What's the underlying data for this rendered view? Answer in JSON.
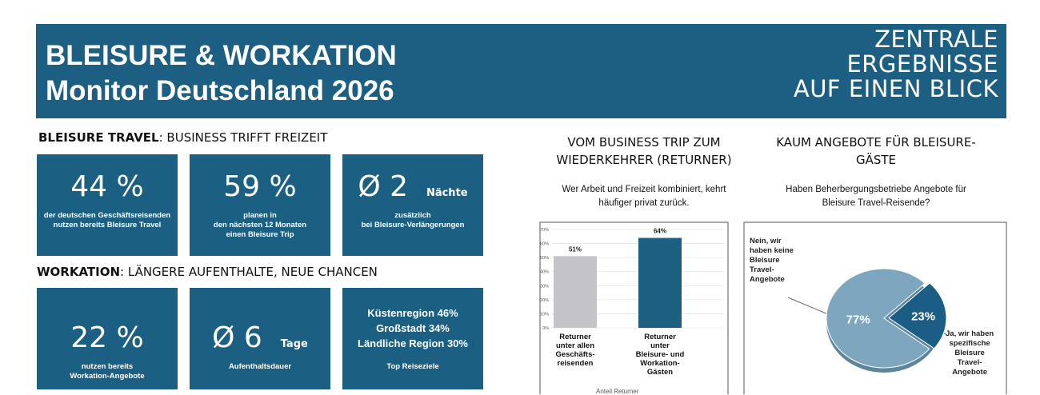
{
  "header": {
    "title_lines": [
      "BLEISURE & WORKATION",
      "Monitor Deutschland 2026"
    ],
    "tagline_lines": [
      "ZENTRALE",
      "ERGEBNISSE",
      "AUF EINEN BLICK"
    ]
  },
  "bleisure": {
    "heading_bold": "BLEISURE TRAVEL",
    "heading_rest": ": BUSINESS TRIFFT FREIZEIT",
    "cards": [
      {
        "big": "44 %",
        "text": [
          "der deutschen Geschäftsreisenden",
          "nutzen bereits Bleisure Travel"
        ]
      },
      {
        "big": "59 %",
        "text": [
          "planen in",
          "den nächsten 12 Monaten",
          "einen Bleisure Trip"
        ]
      },
      {
        "big": "Ø 2",
        "unit": "Nächte",
        "text": [
          "zusätzlich",
          "bei Bleisure-Verlängerungen"
        ]
      }
    ]
  },
  "workation": {
    "heading_bold": "WORKATION",
    "heading_rest": ": LÄNGERE AUFENTHALTE, NEUE CHANCEN",
    "cards": [
      {
        "big": "22 %",
        "text": [
          "nutzen bereits",
          "Workation-Angebote"
        ]
      },
      {
        "big": "Ø 6",
        "unit": "Tage",
        "text": [
          "Aufenthaltsdauer"
        ]
      },
      {
        "lines": [
          "Küstenregion 46%",
          "Großstadt 34%",
          "Ländliche Region 30%"
        ],
        "text": [
          "Top Reiseziele"
        ]
      }
    ]
  },
  "chart_data": [
    {
      "type": "bar",
      "title": "VOM BUSINESS TRIP ZUM\nWIEDERKEHRER (RETURNER)",
      "subtitle": "Wer Arbeit und Freizeit kombiniert, kehrt\nhäufiger privat zurück.",
      "categories": [
        "Returner\nunter allen\nGeschäfts-\nreisenden",
        "Returner\nunter\nBleisure- und\nWorkation-\nGästen"
      ],
      "values": [
        51,
        64
      ],
      "value_labels": [
        "51%",
        "64%"
      ],
      "colors": [
        "#c4c4c8",
        "#1d5f80"
      ],
      "x_label": "Anteil Returner",
      "ylim": [
        0,
        70
      ],
      "grid": true,
      "yticks": [
        {
          "value": 0,
          "label": "0%"
        },
        {
          "value": 10,
          "label": "10%"
        },
        {
          "value": 20,
          "label": "20%"
        },
        {
          "value": 30,
          "label": "30%"
        },
        {
          "value": 40,
          "label": "40%"
        },
        {
          "value": 50,
          "label": "50%"
        },
        {
          "value": 60,
          "label": "60%"
        },
        {
          "value": 70,
          "label": "70%"
        }
      ]
    },
    {
      "type": "pie",
      "title": "KAUM ANGEBOTE FÜR BLEISURE-\nGÄSTE",
      "subtitle": "Haben Beherbergungsbetriebe  Angebote für\nBleisure Travel-Reisende?",
      "categories": [
        "Nein, wir\nhaben keine\nBleisure\nTravel-\nAngebote",
        "Ja, wir haben\nspezifische\nBleisure\nTravel-\nAngebote"
      ],
      "values": [
        77,
        23
      ],
      "value_labels": [
        "77%",
        "23%"
      ],
      "colors": [
        "#7fa6bf",
        "#1c5d86"
      ]
    }
  ]
}
